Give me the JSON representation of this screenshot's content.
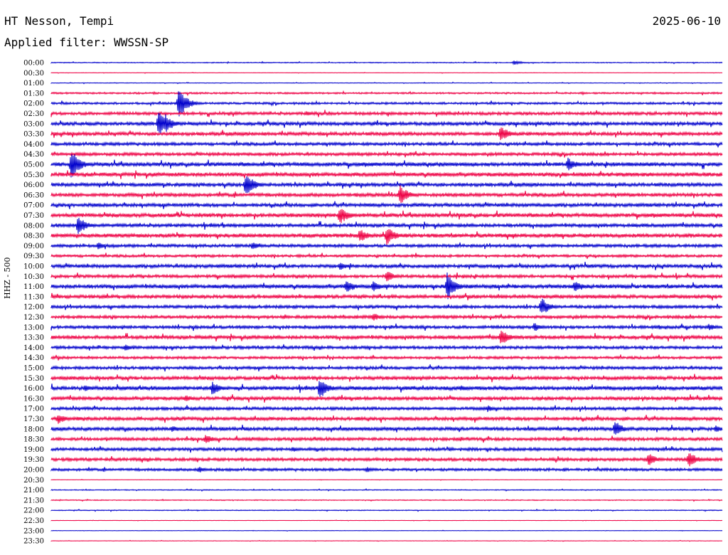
{
  "header": {
    "station": "HT Nesson, Tempi",
    "date": "2025-06-10",
    "filter": "Applied filter: WWSSN-SP"
  },
  "chart_data": {
    "type": "line",
    "title": "HT Nesson, Tempi",
    "subtitle": "Applied filter: WWSSN-SP",
    "ylabel": "HHZ - 500",
    "xlabel": "",
    "rows": [
      "00:00",
      "00:30",
      "01:00",
      "01:30",
      "02:00",
      "02:30",
      "03:00",
      "03:30",
      "04:00",
      "04:30",
      "05:00",
      "05:30",
      "06:00",
      "06:30",
      "07:00",
      "07:30",
      "08:00",
      "08:30",
      "09:00",
      "09:30",
      "10:00",
      "10:30",
      "11:00",
      "11:30",
      "12:00",
      "12:30",
      "13:00",
      "13:30",
      "14:00",
      "14:30",
      "15:00",
      "15:30",
      "16:00",
      "16:30",
      "17:00",
      "17:30",
      "18:00",
      "18:30",
      "19:00",
      "19:30",
      "20:00",
      "20:30",
      "21:00",
      "21:30",
      "22:00",
      "22:30",
      "23:00",
      "23:30"
    ],
    "row_amplitude": [
      0.4,
      0.2,
      0.3,
      0.8,
      1.0,
      1.4,
      1.6,
      1.6,
      1.4,
      1.4,
      1.8,
      1.8,
      1.6,
      1.6,
      1.6,
      1.8,
      1.6,
      1.8,
      1.4,
      1.2,
      1.6,
      1.4,
      1.8,
      1.6,
      1.4,
      1.4,
      1.4,
      1.6,
      1.4,
      1.2,
      1.4,
      1.6,
      1.8,
      1.6,
      1.4,
      1.6,
      1.6,
      1.4,
      1.4,
      1.4,
      1.2,
      0.2,
      0.4,
      0.4,
      0.4,
      0.2,
      0.2,
      0.2
    ],
    "events": [
      {
        "row": "00:00",
        "x": 0.69,
        "amp": 3
      },
      {
        "row": "02:00",
        "x": 0.19,
        "amp": 22
      },
      {
        "row": "03:00",
        "x": 0.16,
        "amp": 18
      },
      {
        "row": "03:00",
        "x": 0.17,
        "amp": 14
      },
      {
        "row": "02:30",
        "x": 0.38,
        "amp": 4
      },
      {
        "row": "03:30",
        "x": 0.67,
        "amp": 12
      },
      {
        "row": "05:00",
        "x": 0.03,
        "amp": 22
      },
      {
        "row": "05:00",
        "x": 0.77,
        "amp": 10
      },
      {
        "row": "06:00",
        "x": 0.29,
        "amp": 18
      },
      {
        "row": "06:30",
        "x": 0.52,
        "amp": 14
      },
      {
        "row": "07:30",
        "x": 0.43,
        "amp": 14
      },
      {
        "row": "08:00",
        "x": 0.04,
        "amp": 14
      },
      {
        "row": "08:30",
        "x": 0.46,
        "amp": 10
      },
      {
        "row": "08:30",
        "x": 0.5,
        "amp": 14
      },
      {
        "row": "09:00",
        "x": 0.07,
        "amp": 5
      },
      {
        "row": "09:00",
        "x": 0.3,
        "amp": 6
      },
      {
        "row": "10:00",
        "x": 0.43,
        "amp": 6
      },
      {
        "row": "10:30",
        "x": 0.5,
        "amp": 8
      },
      {
        "row": "11:00",
        "x": 0.44,
        "amp": 10
      },
      {
        "row": "11:00",
        "x": 0.48,
        "amp": 8
      },
      {
        "row": "11:00",
        "x": 0.59,
        "amp": 20
      },
      {
        "row": "11:00",
        "x": 0.78,
        "amp": 8
      },
      {
        "row": "12:00",
        "x": 0.73,
        "amp": 14
      },
      {
        "row": "12:30",
        "x": 0.48,
        "amp": 6
      },
      {
        "row": "13:00",
        "x": 0.72,
        "amp": 7
      },
      {
        "row": "13:00",
        "x": 0.98,
        "amp": 5
      },
      {
        "row": "13:30",
        "x": 0.67,
        "amp": 12
      },
      {
        "row": "14:00",
        "x": 0.11,
        "amp": 5
      },
      {
        "row": "16:00",
        "x": 0.05,
        "amp": 5
      },
      {
        "row": "16:00",
        "x": 0.24,
        "amp": 10
      },
      {
        "row": "16:00",
        "x": 0.4,
        "amp": 16
      },
      {
        "row": "16:00",
        "x": 0.61,
        "amp": 5
      },
      {
        "row": "16:30",
        "x": 0.2,
        "amp": 5
      },
      {
        "row": "17:00",
        "x": 0.65,
        "amp": 5
      },
      {
        "row": "17:30",
        "x": 0.01,
        "amp": 8
      },
      {
        "row": "17:30",
        "x": 0.04,
        "amp": 4
      },
      {
        "row": "18:00",
        "x": 0.18,
        "amp": 5
      },
      {
        "row": "18:00",
        "x": 0.84,
        "amp": 12
      },
      {
        "row": "18:00",
        "x": 0.99,
        "amp": 5
      },
      {
        "row": "18:30",
        "x": 0.23,
        "amp": 7
      },
      {
        "row": "19:00",
        "x": 0.36,
        "amp": 4
      },
      {
        "row": "19:30",
        "x": 0.89,
        "amp": 10
      },
      {
        "row": "19:30",
        "x": 0.95,
        "amp": 12
      },
      {
        "row": "20:00",
        "x": 0.22,
        "amp": 5
      },
      {
        "row": "20:00",
        "x": 0.47,
        "amp": 4
      }
    ],
    "colors": [
      "#0000cc",
      "#ee0044"
    ],
    "grid": false,
    "legend": "none"
  }
}
